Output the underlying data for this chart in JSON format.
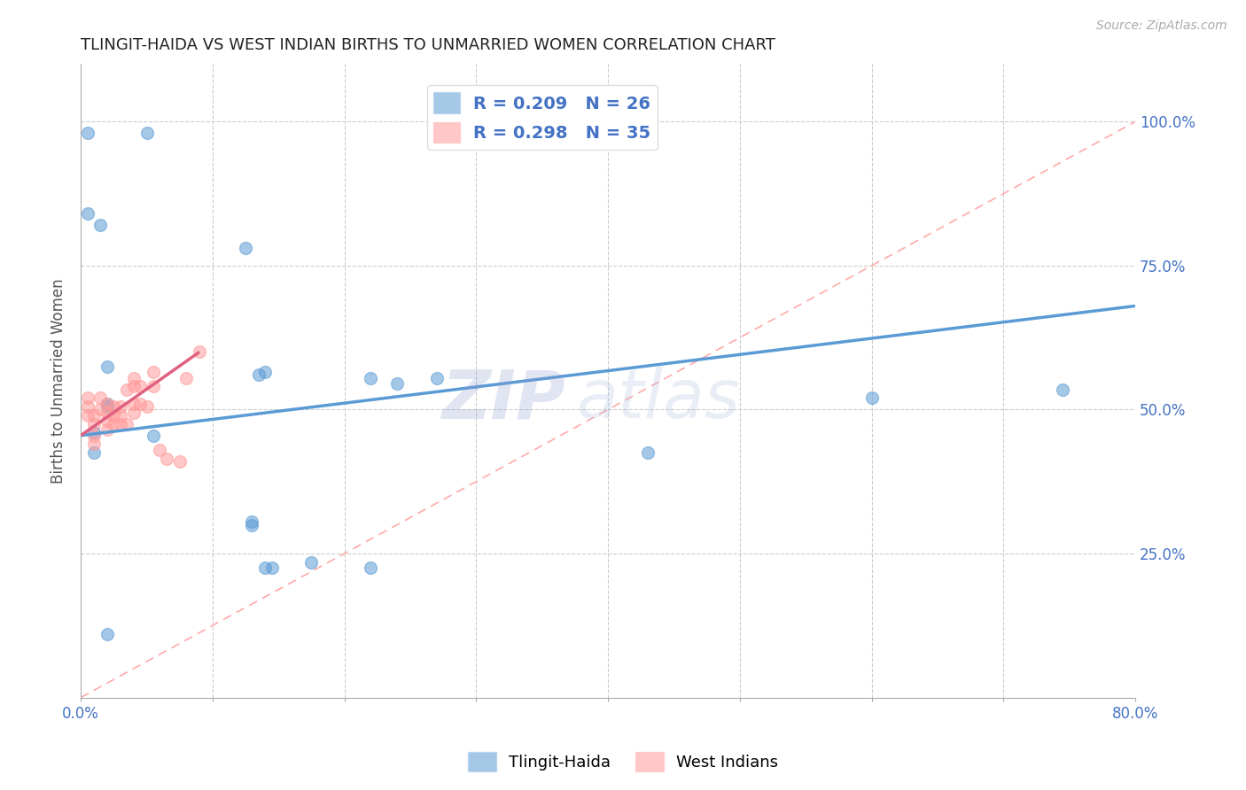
{
  "title": "TLINGIT-HAIDA VS WEST INDIAN BIRTHS TO UNMARRIED WOMEN CORRELATION CHART",
  "source": "Source: ZipAtlas.com",
  "ylabel": "Births to Unmarried Women",
  "xlim": [
    0,
    0.8
  ],
  "ylim": [
    0,
    1.1
  ],
  "blue_color": "#5B9BD5",
  "pink_color": "#FF9999",
  "blue_R": "0.209",
  "blue_N": "26",
  "pink_R": "0.298",
  "pink_N": "35",
  "watermark_zip": "ZIP",
  "watermark_atlas": "atlas",
  "legend_blue": "Tlingit-Haida",
  "legend_pink": "West Indians",
  "tlingit_x": [
    0.005,
    0.05,
    0.005,
    0.015,
    0.125,
    0.02,
    0.14,
    0.22,
    0.24,
    0.27,
    0.135,
    0.02,
    0.02,
    0.01,
    0.055,
    0.01,
    0.13,
    0.145,
    0.175,
    0.43,
    0.6,
    0.745,
    0.02,
    0.13,
    0.14,
    0.22
  ],
  "tlingit_y": [
    0.98,
    0.98,
    0.84,
    0.82,
    0.78,
    0.575,
    0.565,
    0.555,
    0.545,
    0.555,
    0.56,
    0.51,
    0.505,
    0.425,
    0.455,
    0.46,
    0.305,
    0.225,
    0.235,
    0.425,
    0.52,
    0.535,
    0.11,
    0.3,
    0.225,
    0.225
  ],
  "westindian_x": [
    0.005,
    0.005,
    0.005,
    0.01,
    0.01,
    0.01,
    0.01,
    0.015,
    0.015,
    0.02,
    0.02,
    0.02,
    0.02,
    0.025,
    0.025,
    0.025,
    0.03,
    0.03,
    0.03,
    0.035,
    0.035,
    0.04,
    0.04,
    0.04,
    0.04,
    0.045,
    0.045,
    0.05,
    0.055,
    0.055,
    0.06,
    0.065,
    0.075,
    0.08,
    0.09
  ],
  "westindian_y": [
    0.49,
    0.505,
    0.52,
    0.44,
    0.455,
    0.475,
    0.49,
    0.5,
    0.52,
    0.465,
    0.48,
    0.495,
    0.51,
    0.475,
    0.49,
    0.505,
    0.475,
    0.49,
    0.505,
    0.475,
    0.535,
    0.495,
    0.51,
    0.54,
    0.555,
    0.51,
    0.54,
    0.505,
    0.54,
    0.565,
    0.43,
    0.415,
    0.41,
    0.555,
    0.6
  ],
  "blue_line_x": [
    0.0,
    0.8
  ],
  "blue_line_y": [
    0.455,
    0.68
  ],
  "pink_line_x": [
    0.0,
    0.09
  ],
  "pink_line_y": [
    0.455,
    0.6
  ],
  "diag_line_x": [
    0.0,
    0.8
  ],
  "diag_line_y": [
    0.0,
    1.0
  ],
  "ytick_positions": [
    0.25,
    0.5,
    0.75,
    1.0
  ],
  "ytick_labels": [
    "25.0%",
    "50.0%",
    "75.0%",
    "100.0%"
  ]
}
